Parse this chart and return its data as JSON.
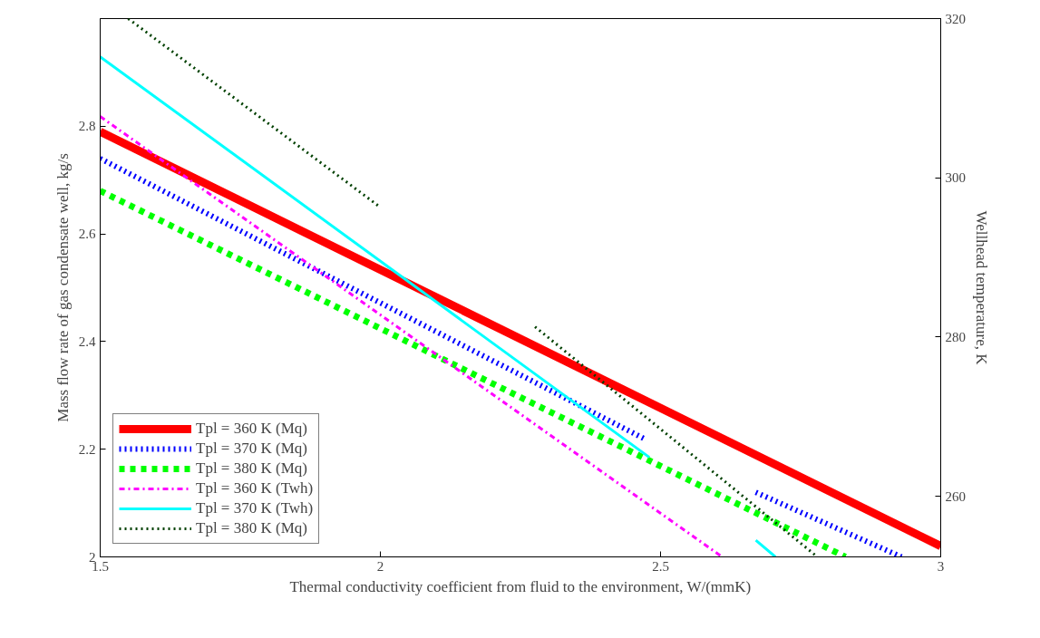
{
  "chart_data": {
    "type": "line",
    "xlabel": "Thermal conductivity coefficient from fluid to the environment, W/(mmK)",
    "ylabel": "Mass flow rate of gas condensate well, kg/s",
    "y2label": "Wellhead temperature, K",
    "xlim": [
      1.5,
      3
    ],
    "xticks": [
      1.5,
      2,
      2.5,
      3
    ],
    "ylim": [
      2,
      3.0
    ],
    "yticks": [
      2,
      2.2,
      2.4,
      2.6,
      2.8
    ],
    "y2lim": [
      252.4,
      320
    ],
    "y2ticks": [
      260,
      280,
      300,
      320
    ],
    "grid": false,
    "legend": "bottom left",
    "series": [
      {
        "name": "Tpl = 360 K (Mq)",
        "color": "#ff0000",
        "line_style": "solid",
        "x": [
          1.5,
          3
        ],
        "values": [
          2.79,
          2.02
        ]
      },
      {
        "name": "Tpl = 370 K (Mq)",
        "color": "#0000ff",
        "line_style": "dotted",
        "x": [
          1.5,
          2.47,
          2.57,
          2.67,
          2.93
        ],
        "values": [
          2.74,
          2.22,
          null,
          2.12,
          2.0
        ]
      },
      {
        "name": "Tpl = 380 K (Mq)",
        "color": "#00ff00",
        "line_style": "dashed",
        "x": [
          1.5,
          2.83
        ],
        "values": [
          2.68,
          2.0
        ]
      },
      {
        "name": "Tpl = 360 K (Twh)",
        "color": "#ff00ff",
        "line_style": "dashdot",
        "axis": "y2",
        "x": [
          1.5,
          2.61
        ],
        "values": [
          307.7,
          252.4
        ]
      },
      {
        "name": "Tpl = 370 K (Twh)",
        "color": "#00ffff",
        "line_style": "solid",
        "axis": "y2",
        "x": [
          1.5,
          2.48,
          2.57,
          2.67,
          2.705
        ],
        "values": [
          315.2,
          264.9,
          null,
          254.5,
          252.4
        ]
      },
      {
        "name": "Tpl = 380 K (Mq)",
        "color": "#004000",
        "line_style": "dotted",
        "axis": "y2",
        "x": [
          1.55,
          2.0,
          2.14,
          2.276,
          2.78
        ],
        "values": [
          320,
          296.3,
          null,
          281.3,
          252.4
        ]
      }
    ]
  }
}
